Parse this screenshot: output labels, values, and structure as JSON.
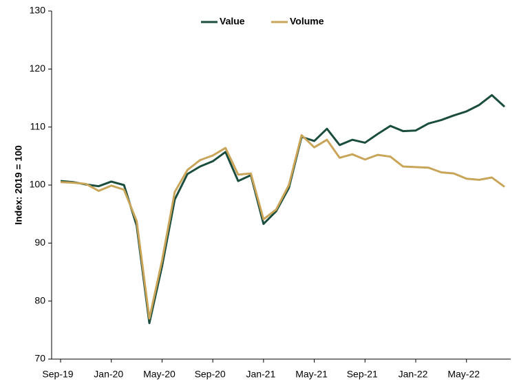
{
  "chart_data": {
    "type": "line",
    "y_label": "Index: 2019 = 100",
    "categories": [
      "Sep-19",
      null,
      null,
      null,
      "Jan-20",
      null,
      null,
      null,
      "May-20",
      null,
      null,
      null,
      "Sep-20",
      null,
      null,
      null,
      "Jan-21",
      null,
      null,
      null,
      "May-21",
      null,
      null,
      null,
      "Sep-21",
      null,
      null,
      null,
      "Jan-22",
      null,
      null,
      null,
      "May-22",
      null,
      null,
      null
    ],
    "series": [
      {
        "name": "Value",
        "color": "#1b4d3e",
        "values": [
          100.7,
          100.5,
          100.1,
          99.8,
          100.6,
          100.0,
          93.0,
          76.2,
          86.0,
          97.5,
          101.9,
          103.2,
          104.1,
          105.7,
          100.7,
          101.7,
          93.3,
          95.5,
          99.5,
          108.3,
          107.6,
          109.7,
          106.9,
          107.8,
          107.3,
          108.8,
          110.2,
          109.3,
          109.4,
          110.6,
          111.2,
          112.0,
          112.7,
          113.8,
          115.5,
          113.5
        ]
      },
      {
        "name": "Volume",
        "color": "#c9a55a",
        "values": [
          100.5,
          100.4,
          100.2,
          99.0,
          99.9,
          99.2,
          93.8,
          77.0,
          87.0,
          98.8,
          102.6,
          104.3,
          105.1,
          106.4,
          101.8,
          102.0,
          94.1,
          95.8,
          100.0,
          108.6,
          106.5,
          107.8,
          104.7,
          105.3,
          104.4,
          105.2,
          104.9,
          103.2,
          103.1,
          103.0,
          102.2,
          102.0,
          101.1,
          100.9,
          101.3,
          99.7
        ]
      }
    ],
    "ylim": [
      70,
      130
    ],
    "yticks": [
      70,
      80,
      90,
      100,
      110,
      120,
      130
    ],
    "grid": false,
    "legend": "top"
  }
}
